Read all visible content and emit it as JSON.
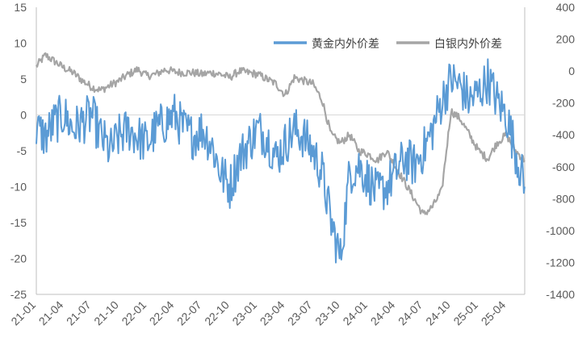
{
  "chart_data": {
    "type": "line",
    "title": "",
    "xlabel": "",
    "ylabel": "",
    "y2label": "",
    "ylim": [
      -25,
      15
    ],
    "y2lim": [
      -1400,
      400
    ],
    "y_ticks": [
      "15",
      "10",
      "5",
      "0",
      "-5",
      "-10",
      "-15",
      "-20",
      "-25"
    ],
    "y2_ticks": [
      "400",
      "200",
      "0",
      "-200",
      "-400",
      "-600",
      "-800",
      "-1000",
      "-1200",
      "-1400"
    ],
    "x_ticks": [
      "21-01",
      "21-04",
      "21-07",
      "21-10",
      "22-01",
      "22-04",
      "22-07",
      "22-10",
      "23-01",
      "23-04",
      "23-07",
      "23-10",
      "24-01",
      "24-04",
      "24-07",
      "24-10",
      "25-01",
      "25-04"
    ],
    "x_start": "2021-01",
    "x_end": "2025-06",
    "legend_position": "top-right",
    "colors": {
      "gold": "#5B9BD5",
      "silver": "#A5A5A5",
      "zero_line": "#D9D9D9",
      "axis": "#BFBFBF"
    },
    "series": [
      {
        "name": "白银内外价差",
        "axis": "right",
        "x": [
          "2021-01",
          "2021-02",
          "2021-03",
          "2021-04",
          "2021-05",
          "2021-06",
          "2021-07",
          "2021-08",
          "2021-09",
          "2021-10",
          "2021-11",
          "2021-12",
          "2022-01",
          "2022-02",
          "2022-03",
          "2022-04",
          "2022-05",
          "2022-06",
          "2022-07",
          "2022-08",
          "2022-09",
          "2022-10",
          "2022-11",
          "2022-12",
          "2023-01",
          "2023-02",
          "2023-03",
          "2023-04",
          "2023-05",
          "2023-06",
          "2023-07",
          "2023-08",
          "2023-09",
          "2023-10",
          "2023-11",
          "2023-12",
          "2024-01",
          "2024-02",
          "2024-03",
          "2024-04",
          "2024-05",
          "2024-06",
          "2024-07",
          "2024-08",
          "2024-09",
          "2024-10",
          "2024-11",
          "2024-12",
          "2025-01",
          "2025-02",
          "2025-03",
          "2025-04",
          "2025-05",
          "2025-06"
        ],
        "values": [
          30,
          100,
          60,
          20,
          -10,
          -60,
          -100,
          -120,
          -90,
          -60,
          -20,
          10,
          -30,
          -20,
          10,
          -5,
          -10,
          -10,
          -20,
          -10,
          -20,
          -40,
          0,
          -10,
          -20,
          -50,
          -80,
          -150,
          -40,
          -60,
          -80,
          -180,
          -400,
          -450,
          -400,
          -500,
          -520,
          -560,
          -500,
          -600,
          -700,
          -800,
          -900,
          -850,
          -750,
          -250,
          -300,
          -400,
          -500,
          -550,
          -450,
          -400,
          -500,
          -560
        ]
      },
      {
        "name": "黄金内外价差",
        "axis": "left",
        "x": [
          "2021-01",
          "2021-02",
          "2021-03",
          "2021-04",
          "2021-05",
          "2021-06",
          "2021-07",
          "2021-08",
          "2021-09",
          "2021-10",
          "2021-11",
          "2021-12",
          "2022-01",
          "2022-02",
          "2022-03",
          "2022-04",
          "2022-05",
          "2022-06",
          "2022-07",
          "2022-08",
          "2022-09",
          "2022-10",
          "2022-11",
          "2022-12",
          "2023-01",
          "2023-02",
          "2023-03",
          "2023-04",
          "2023-05",
          "2023-06",
          "2023-07",
          "2023-08",
          "2023-09",
          "2023-10",
          "2023-11",
          "2023-12",
          "2024-01",
          "2024-02",
          "2024-03",
          "2024-04",
          "2024-05",
          "2024-06",
          "2024-07",
          "2024-08",
          "2024-09",
          "2024-10",
          "2024-11",
          "2024-12",
          "2025-01",
          "2025-02",
          "2025-03",
          "2025-04",
          "2025-05",
          "2025-06"
        ],
        "values": [
          -2,
          -3,
          -1,
          0,
          -2,
          -1,
          0,
          -3,
          -5,
          -3,
          -2,
          -3,
          -4,
          -2,
          -1,
          0,
          -2,
          -3,
          -2,
          -4,
          -8,
          -10,
          -6,
          -4,
          -2,
          -3,
          -6,
          -4,
          -2,
          -3,
          -5,
          -8,
          -15,
          -20,
          -8,
          -7,
          -9,
          -11,
          -10,
          -8,
          -6,
          -7,
          -5,
          -2,
          2,
          5,
          4,
          2,
          3,
          5,
          2,
          0,
          -5,
          -10
        ]
      }
    ]
  }
}
